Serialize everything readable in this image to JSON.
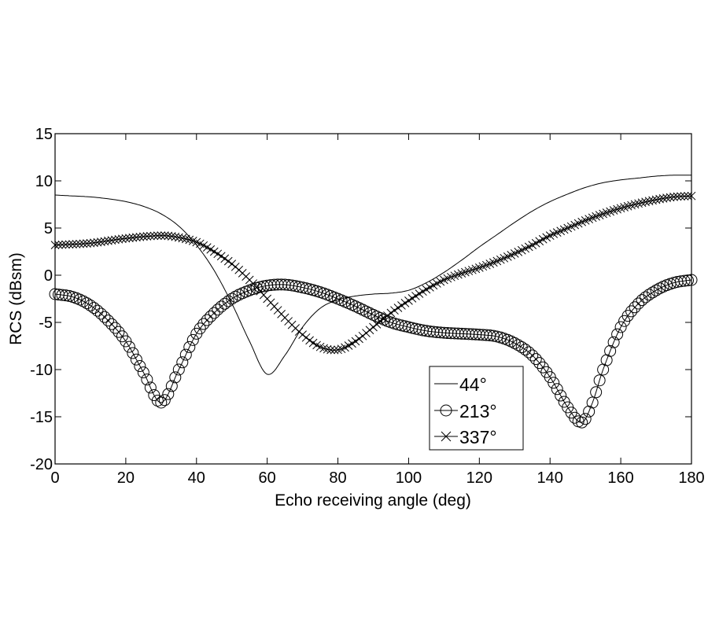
{
  "chart_data": {
    "type": "line",
    "title": "",
    "xlabel": "Echo receiving angle (deg)",
    "ylabel": "RCS (dBsm)",
    "xlim": [
      0,
      180
    ],
    "ylim": [
      -20,
      15
    ],
    "xticks": [
      "0",
      "20",
      "40",
      "60",
      "80",
      "100",
      "120",
      "140",
      "160",
      "180"
    ],
    "yticks": [
      "15",
      "10",
      "5",
      "0",
      "-5",
      "-10",
      "-15",
      "-20"
    ],
    "grid": false,
    "legend_position": "lower-center-right",
    "series": [
      {
        "name": "44°",
        "marker": "none",
        "x": [
          0,
          5,
          10,
          15,
          20,
          25,
          30,
          35,
          40,
          45,
          50,
          55,
          60,
          65,
          70,
          75,
          80,
          85,
          90,
          95,
          100,
          105,
          110,
          115,
          120,
          125,
          130,
          135,
          140,
          145,
          150,
          155,
          160,
          165,
          170,
          175,
          180
        ],
        "y": [
          8.5,
          8.4,
          8.3,
          8.1,
          7.8,
          7.3,
          6.5,
          5.2,
          3.2,
          0.5,
          -3,
          -7,
          -10.5,
          -8.5,
          -5.5,
          -3.5,
          -2.6,
          -2.2,
          -2,
          -1.9,
          -1.6,
          -0.8,
          0.3,
          1.6,
          3,
          4.3,
          5.6,
          6.8,
          7.8,
          8.6,
          9.3,
          9.8,
          10.1,
          10.3,
          10.5,
          10.6,
          10.6
        ]
      },
      {
        "name": "213°",
        "marker": "circle",
        "x": [
          0,
          5,
          10,
          15,
          20,
          25,
          30,
          35,
          40,
          45,
          50,
          55,
          60,
          65,
          70,
          75,
          80,
          85,
          90,
          95,
          100,
          105,
          110,
          115,
          120,
          125,
          130,
          135,
          140,
          145,
          149,
          152,
          155,
          160,
          165,
          170,
          175,
          180
        ],
        "y": [
          -2,
          -2.3,
          -3.2,
          -4.8,
          -7,
          -10.3,
          -13.5,
          -10,
          -6.2,
          -4,
          -2.5,
          -1.6,
          -1.1,
          -1,
          -1.3,
          -1.8,
          -2.5,
          -3.3,
          -4.2,
          -5,
          -5.5,
          -5.9,
          -6.1,
          -6.2,
          -6.3,
          -6.5,
          -7.2,
          -8.5,
          -10.8,
          -14,
          -15.6,
          -13.5,
          -10,
          -5.5,
          -3,
          -1.6,
          -0.8,
          -0.5
        ]
      },
      {
        "name": "337°",
        "marker": "x",
        "x": [
          0,
          10,
          20,
          30,
          35,
          40,
          45,
          50,
          55,
          60,
          65,
          70,
          75,
          80,
          85,
          90,
          95,
          100,
          105,
          110,
          115,
          120,
          125,
          130,
          135,
          140,
          145,
          150,
          155,
          160,
          165,
          170,
          175,
          180
        ],
        "y": [
          3.2,
          3.4,
          3.9,
          4.2,
          4,
          3.5,
          2.5,
          1.2,
          -0.5,
          -2.5,
          -4.5,
          -6.3,
          -7.6,
          -7.9,
          -7,
          -5.5,
          -4,
          -2.7,
          -1.5,
          -0.5,
          0.2,
          0.8,
          1.5,
          2.3,
          3.2,
          4.2,
          5,
          5.8,
          6.5,
          7.1,
          7.6,
          8,
          8.3,
          8.4
        ]
      }
    ]
  }
}
